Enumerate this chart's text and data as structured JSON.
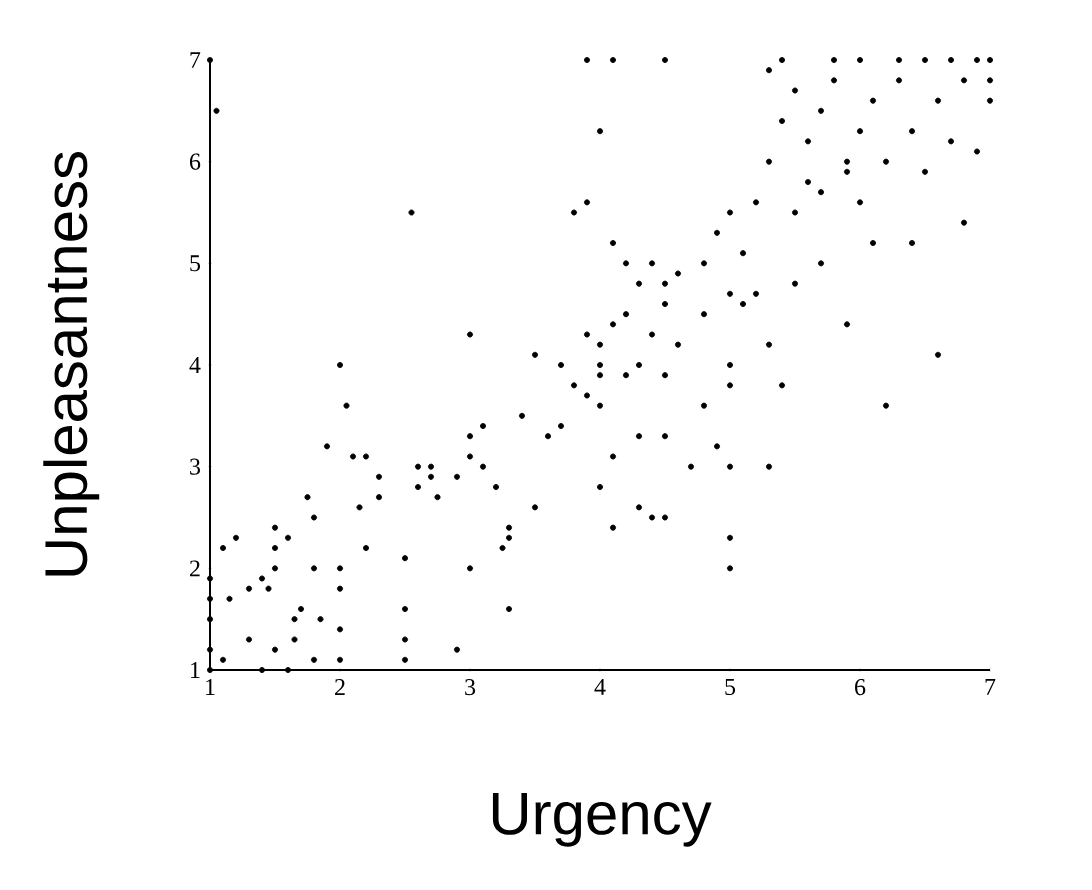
{
  "chart_data": {
    "type": "scatter",
    "xlabel": "Urgency",
    "ylabel": "Unpleasantness",
    "xlim": [
      1,
      7
    ],
    "ylim": [
      1,
      7
    ],
    "xticks": [
      1,
      2,
      3,
      4,
      5,
      6,
      7
    ],
    "yticks": [
      1,
      2,
      3,
      4,
      5,
      6,
      7
    ],
    "grid": false,
    "marker": "circle",
    "series": [
      {
        "color": "#000000",
        "x": [
          1,
          1,
          1,
          1,
          1,
          1.1,
          1.1,
          1.15,
          1.2,
          1.3,
          1.3,
          1.4,
          1.45,
          1.5,
          1.5,
          1.5,
          1.5,
          1.4,
          1.6,
          1.65,
          1.65,
          1.7,
          1.75,
          1.8,
          1.8,
          1.8,
          1.85,
          1.9,
          2.0,
          2.0,
          2.0,
          2.0,
          2.0,
          2.05,
          2.1,
          2.15,
          2.2,
          2.2,
          2.3,
          2.3,
          2.5,
          2.5,
          2.5,
          2.5,
          2.55,
          2.6,
          2.6,
          2.7,
          2.7,
          2.75,
          2.9,
          2.9,
          3.0,
          3.0,
          3.0,
          3.1,
          3.1,
          3.2,
          3.25,
          3.3,
          3.3,
          3.3,
          3.0,
          3.4,
          3.5,
          3.6,
          3.5,
          3.7,
          3.7,
          3.8,
          3.8,
          3.9,
          3.9,
          4.0,
          4.0,
          4.0,
          4.0,
          4.0,
          4.1,
          4.1,
          4.1,
          4.2,
          4.2,
          4.3,
          4.3,
          4.3,
          4.4,
          4.4,
          4.5,
          4.5,
          4.5,
          4.5,
          4.5,
          4.6,
          4.7,
          4.8,
          4.8,
          4.9,
          5.0,
          5.0,
          5.0,
          5.0,
          5.0,
          4.2,
          4.3,
          4.1,
          3.9,
          4.0,
          3.9,
          4.1,
          4.5,
          4.4,
          4.6,
          4.8,
          4.9,
          5.0,
          5.0,
          5.1,
          5.2,
          5.3,
          5.4,
          5.2,
          5.3,
          5.4,
          5.5,
          5.3,
          5.4,
          5.5,
          5.6,
          5.6,
          5.7,
          5.7,
          5.8,
          5.8,
          5.9,
          5.9,
          6.0,
          6.0,
          6.0,
          6.1,
          6.1,
          6.2,
          6.2,
          6.3,
          6.3,
          6.4,
          6.5,
          6.5,
          6.6,
          6.6,
          6.7,
          6.7,
          6.8,
          6.8,
          6.9,
          6.9,
          7.0,
          7.0,
          7.0,
          5.1,
          5.3,
          5.5,
          5.7,
          6.4,
          5.9,
          1.0,
          1.05,
          1.6
        ],
        "values": [
          1,
          1.2,
          1.5,
          1.7,
          1.9,
          2.2,
          1.1,
          1.7,
          2.3,
          1.8,
          1.3,
          1.9,
          1.8,
          2.4,
          2.2,
          2.0,
          1.2,
          1.0,
          2.3,
          1.5,
          1.3,
          1.6,
          2.7,
          2.5,
          2.0,
          1.1,
          1.5,
          3.2,
          2.0,
          1.8,
          1.4,
          1.1,
          4.0,
          3.6,
          3.1,
          2.6,
          3.1,
          2.2,
          2.9,
          2.7,
          2.1,
          1.6,
          1.3,
          1.1,
          5.5,
          3.0,
          2.8,
          2.9,
          3.0,
          2.7,
          2.9,
          1.2,
          3.3,
          3.1,
          2.0,
          3.4,
          3.0,
          2.8,
          2.2,
          2.3,
          1.6,
          2.4,
          4.3,
          3.5,
          2.6,
          3.3,
          4.1,
          4.0,
          3.4,
          3.8,
          5.5,
          4.3,
          3.7,
          4.2,
          4.0,
          3.9,
          3.6,
          2.8,
          4.4,
          3.1,
          2.4,
          4.5,
          3.9,
          4.0,
          3.3,
          2.6,
          4.3,
          2.5,
          4.8,
          4.6,
          3.9,
          3.3,
          2.5,
          4.2,
          3.0,
          4.5,
          3.6,
          3.2,
          4.0,
          3.8,
          3.0,
          2.3,
          2.0,
          5.0,
          4.8,
          5.2,
          5.6,
          6.3,
          7.0,
          7.0,
          7.0,
          5.0,
          4.9,
          5.0,
          5.3,
          4.7,
          5.5,
          4.6,
          4.7,
          3.0,
          3.8,
          5.6,
          6.0,
          6.4,
          6.7,
          6.9,
          7.0,
          5.5,
          5.8,
          6.2,
          5.0,
          6.5,
          6.8,
          7.0,
          6.0,
          4.4,
          5.6,
          6.3,
          7.0,
          6.6,
          5.2,
          6.0,
          3.6,
          6.8,
          7.0,
          6.3,
          7.0,
          5.9,
          6.6,
          4.1,
          7.0,
          6.2,
          6.8,
          5.4,
          7.0,
          6.1,
          7.0,
          6.8,
          6.6,
          5.1,
          4.2,
          4.8,
          5.7,
          5.2,
          5.9,
          7.0,
          6.5,
          1.0
        ]
      }
    ]
  }
}
